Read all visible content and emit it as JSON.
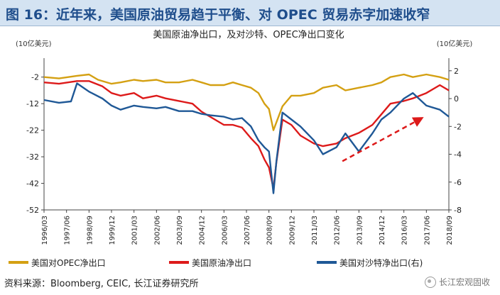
{
  "header": {
    "title": "图 16：近年来，美国原油贸易趋于平衡、对 OPEC 贸易赤字加速收窄"
  },
  "footer": {
    "source": "资料来源：Bloomberg, CEIC, 长江证券研究所",
    "watermark": "长江宏观固收"
  },
  "chart_data": {
    "type": "line",
    "title": "美国原油净出口，及对沙特、OPEC净出口变化",
    "y_left_unit": "(10亿美元)",
    "y_right_unit": "(10亿美元)",
    "y_left_ticks": [
      -2,
      -12,
      -22,
      -32,
      -42,
      -52
    ],
    "y_right_ticks": [
      2,
      0,
      -2,
      -4,
      -6,
      -8
    ],
    "ylim_left": [
      -52,
      3
    ],
    "ylim_right": [
      -8,
      2.5
    ],
    "x_tick_labels": [
      "1996/03",
      "1997/06",
      "1998/09",
      "1999/12",
      "2001/03",
      "2002/06",
      "2003/09",
      "2004/12",
      "2006/03",
      "2007/06",
      "2008/09",
      "2009/12",
      "2011/03",
      "2012/06",
      "2013/09",
      "2014/12",
      "2016/03",
      "2017/06",
      "2018/09"
    ],
    "x_start": "1996/03",
    "x_end": "2018/09",
    "colors": {
      "opec": "#d4a012",
      "crude": "#dd1a1a",
      "saudi": "#1f5896",
      "arrow": "#dd1a1a"
    },
    "series": [
      {
        "name": "美国对OPEC净出口",
        "axis": "left",
        "color": "#d4a012",
        "points": [
          [
            "1996/03",
            -2
          ],
          [
            "1997/01",
            -2.5
          ],
          [
            "1998/01",
            -1.5
          ],
          [
            "1998/09",
            -1
          ],
          [
            "1999/03",
            -3
          ],
          [
            "1999/12",
            -4.5
          ],
          [
            "2000/06",
            -4
          ],
          [
            "2001/03",
            -3
          ],
          [
            "2001/09",
            -3.5
          ],
          [
            "2002/06",
            -3
          ],
          [
            "2002/12",
            -4
          ],
          [
            "2003/09",
            -4
          ],
          [
            "2004/06",
            -3
          ],
          [
            "2004/12",
            -4
          ],
          [
            "2005/06",
            -5
          ],
          [
            "2006/03",
            -5
          ],
          [
            "2006/09",
            -4
          ],
          [
            "2007/03",
            -5
          ],
          [
            "2007/09",
            -6
          ],
          [
            "2008/02",
            -8
          ],
          [
            "2008/06",
            -12
          ],
          [
            "2008/09",
            -14
          ],
          [
            "2008/12",
            -22
          ],
          [
            "2009/02",
            -19
          ],
          [
            "2009/06",
            -13
          ],
          [
            "2009/12",
            -9
          ],
          [
            "2010/06",
            -9
          ],
          [
            "2011/03",
            -8
          ],
          [
            "2011/09",
            -6
          ],
          [
            "2012/06",
            -5
          ],
          [
            "2012/12",
            -7
          ],
          [
            "2013/09",
            -6
          ],
          [
            "2014/06",
            -5
          ],
          [
            "2014/12",
            -4
          ],
          [
            "2015/06",
            -2
          ],
          [
            "2016/03",
            -1
          ],
          [
            "2016/09",
            -2
          ],
          [
            "2017/06",
            -1
          ],
          [
            "2018/03",
            -2
          ],
          [
            "2018/09",
            -3
          ]
        ]
      },
      {
        "name": "美国原油净出口",
        "axis": "left",
        "color": "#dd1a1a",
        "points": [
          [
            "1996/03",
            -4
          ],
          [
            "1997/01",
            -4.5
          ],
          [
            "1998/01",
            -3.5
          ],
          [
            "1998/09",
            -3.5
          ],
          [
            "1999/06",
            -5.5
          ],
          [
            "1999/12",
            -8
          ],
          [
            "2000/06",
            -9
          ],
          [
            "2001/03",
            -8
          ],
          [
            "2001/09",
            -10
          ],
          [
            "2002/06",
            -9
          ],
          [
            "2002/12",
            -10
          ],
          [
            "2003/09",
            -11
          ],
          [
            "2004/06",
            -12
          ],
          [
            "2004/12",
            -15
          ],
          [
            "2005/06",
            -17
          ],
          [
            "2006/03",
            -20
          ],
          [
            "2006/09",
            -20
          ],
          [
            "2007/03",
            -21
          ],
          [
            "2007/09",
            -25
          ],
          [
            "2008/02",
            -28
          ],
          [
            "2008/06",
            -33
          ],
          [
            "2008/09",
            -36
          ],
          [
            "2008/12",
            -44
          ],
          [
            "2009/02",
            -34
          ],
          [
            "2009/06",
            -18
          ],
          [
            "2009/12",
            -20
          ],
          [
            "2010/06",
            -24
          ],
          [
            "2011/03",
            -27
          ],
          [
            "2011/09",
            -28
          ],
          [
            "2012/06",
            -27
          ],
          [
            "2012/12",
            -25
          ],
          [
            "2013/09",
            -23
          ],
          [
            "2014/06",
            -20
          ],
          [
            "2014/12",
            -16
          ],
          [
            "2015/06",
            -12
          ],
          [
            "2016/03",
            -11
          ],
          [
            "2016/09",
            -10
          ],
          [
            "2017/06",
            -8
          ],
          [
            "2018/03",
            -5
          ],
          [
            "2018/09",
            -7
          ]
        ]
      },
      {
        "name": "美国对沙特净出口(右)",
        "axis": "right",
        "color": "#1f5896",
        "points": [
          [
            "1996/03",
            -0.1
          ],
          [
            "1997/01",
            -0.3
          ],
          [
            "1997/09",
            -0.2
          ],
          [
            "1998/01",
            1.1
          ],
          [
            "1998/09",
            0.5
          ],
          [
            "1999/06",
            0
          ],
          [
            "1999/12",
            -0.5
          ],
          [
            "2000/06",
            -0.8
          ],
          [
            "2001/03",
            -0.5
          ],
          [
            "2001/09",
            -0.6
          ],
          [
            "2002/06",
            -0.7
          ],
          [
            "2002/12",
            -0.6
          ],
          [
            "2003/09",
            -0.9
          ],
          [
            "2004/06",
            -0.9
          ],
          [
            "2004/12",
            -1.1
          ],
          [
            "2005/06",
            -1.2
          ],
          [
            "2006/03",
            -1.3
          ],
          [
            "2006/09",
            -1.5
          ],
          [
            "2007/03",
            -1.4
          ],
          [
            "2007/09",
            -2
          ],
          [
            "2008/02",
            -3
          ],
          [
            "2008/06",
            -3.5
          ],
          [
            "2008/09",
            -3.8
          ],
          [
            "2008/12",
            -6.8
          ],
          [
            "2009/02",
            -4.5
          ],
          [
            "2009/06",
            -1
          ],
          [
            "2009/12",
            -1.5
          ],
          [
            "2010/06",
            -2
          ],
          [
            "2011/03",
            -3
          ],
          [
            "2011/09",
            -4
          ],
          [
            "2012/06",
            -3.5
          ],
          [
            "2012/12",
            -2.5
          ],
          [
            "2013/09",
            -3.8
          ],
          [
            "2014/06",
            -2.5
          ],
          [
            "2014/12",
            -1.5
          ],
          [
            "2015/06",
            -1
          ],
          [
            "2016/03",
            0
          ],
          [
            "2016/09",
            0.4
          ],
          [
            "2017/06",
            -0.5
          ],
          [
            "2018/03",
            -0.8
          ],
          [
            "2018/09",
            -1.3
          ]
        ]
      }
    ],
    "trend_arrow": {
      "from": [
        "2012/10",
        -4.5
      ],
      "to": [
        "2017/03",
        -1.4
      ],
      "axis": "right"
    }
  }
}
